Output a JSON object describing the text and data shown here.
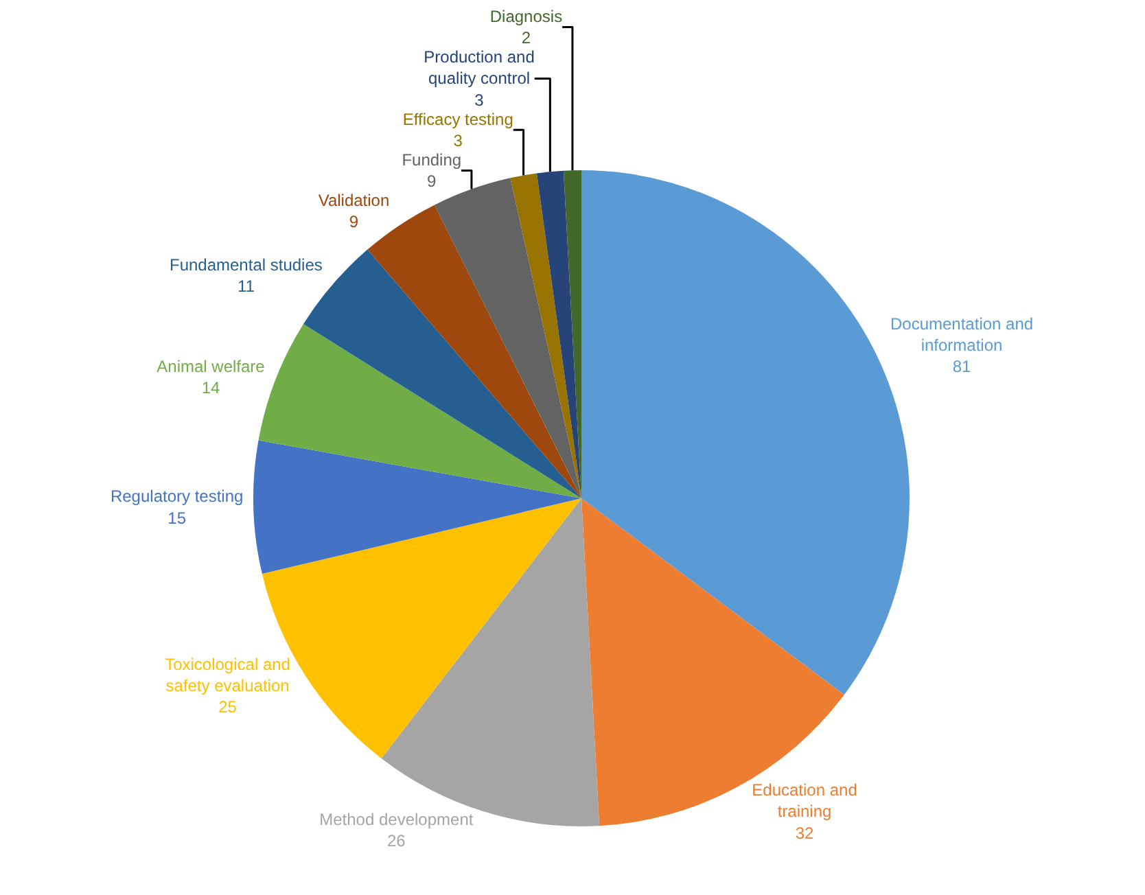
{
  "chart_data": {
    "type": "pie",
    "categories": [
      "Documentation and information",
      "Education and training",
      "Method development",
      "Toxicological and safety evaluation",
      "Regulatory testing",
      "Animal welfare",
      "Fundamental studies",
      "Validation",
      "Funding",
      "Efficacy testing",
      "Production and quality control",
      "Diagnosis"
    ],
    "values": [
      81,
      32,
      26,
      25,
      15,
      14,
      11,
      9,
      9,
      3,
      3,
      2
    ],
    "colors": [
      "#5b9bd5",
      "#ed7d31",
      "#a5a5a5",
      "#ffc000",
      "#4472c4",
      "#70ad47",
      "#255e91",
      "#9e480e",
      "#636363",
      "#997300",
      "#264478",
      "#43682b"
    ],
    "data_labels": true,
    "legend": false
  }
}
